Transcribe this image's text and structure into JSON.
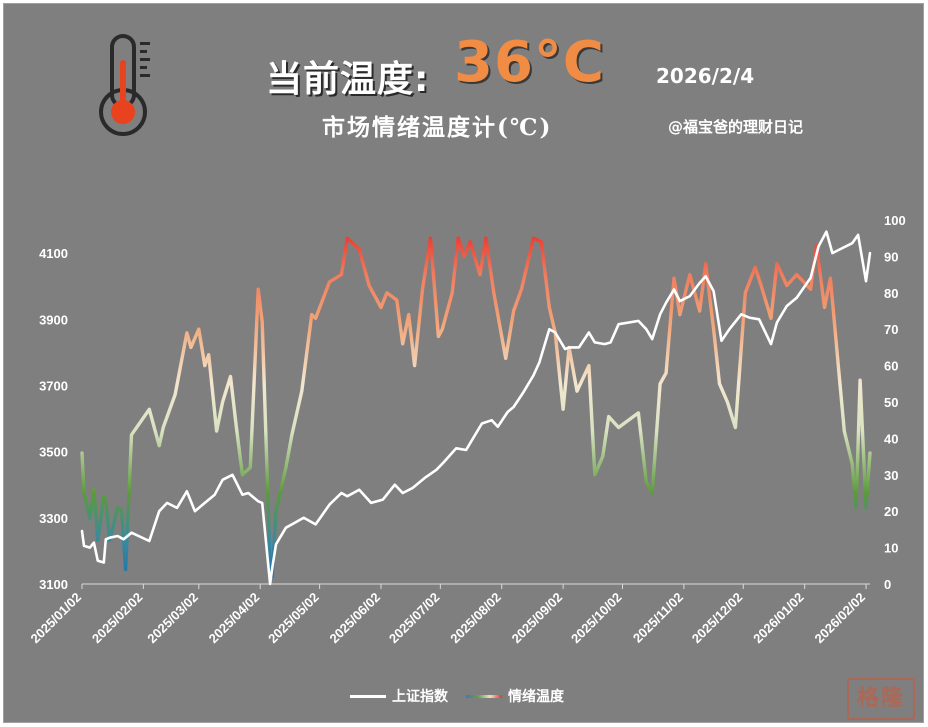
{
  "header": {
    "title_prefix": "当前温度:",
    "title_value": "36°C",
    "date": "2026/2/4",
    "subtitle": "市场情绪温度计(℃)",
    "credit": "@福宝爸的理财日记",
    "icon": "thermometer-icon",
    "seal_text": "格隆"
  },
  "colors": {
    "background": "#7f7f7f",
    "index_line": "#ffffff",
    "temp_cold": "#1f6fae",
    "temp_cool": "#5c9a3c",
    "temp_mild": "#f2e7d0",
    "temp_warm": "#f2a478",
    "temp_hot": "#e8221e",
    "title_accent": "#f08c43"
  },
  "chart_data": {
    "type": "line",
    "x_tick_labels": [
      "2025/01/02",
      "2025/02/02",
      "2025/03/02",
      "2025/04/02",
      "2025/05/02",
      "2025/06/02",
      "2025/07/02",
      "2025/08/02",
      "2025/09/02",
      "2025/10/02",
      "2025/11/02",
      "2025/12/02",
      "2026/01/02",
      "2026/02/02"
    ],
    "y_left": {
      "ticks": [
        "3100",
        "3300",
        "3500",
        "3700",
        "3900",
        "4100"
      ],
      "ylim": [
        3100,
        4200
      ]
    },
    "y_right": {
      "ticks": [
        "0",
        "10",
        "20",
        "30",
        "40",
        "50",
        "60",
        "70",
        "80",
        "90",
        "100"
      ],
      "ylim": [
        0,
        100
      ]
    },
    "xlim": [
      "2025-01-02",
      "2026-02-04"
    ],
    "grid": false,
    "legend": {
      "position": "bottom",
      "entries": [
        "上证指数",
        "情绪温度"
      ]
    },
    "series": [
      {
        "name": "上证指数",
        "axis": "left",
        "points": [
          [
            "2025-01-02",
            3260
          ],
          [
            "2025-01-03",
            3215
          ],
          [
            "2025-01-06",
            3210
          ],
          [
            "2025-01-08",
            3225
          ],
          [
            "2025-01-10",
            3170
          ],
          [
            "2025-01-13",
            3165
          ],
          [
            "2025-01-14",
            3235
          ],
          [
            "2025-01-16",
            3240
          ],
          [
            "2025-01-20",
            3245
          ],
          [
            "2025-01-23",
            3235
          ],
          [
            "2025-01-27",
            3255
          ],
          [
            "2025-02-05",
            3230
          ],
          [
            "2025-02-10",
            3320
          ],
          [
            "2025-02-14",
            3345
          ],
          [
            "2025-02-19",
            3330
          ],
          [
            "2025-02-24",
            3380
          ],
          [
            "2025-02-28",
            3320
          ],
          [
            "2025-03-05",
            3345
          ],
          [
            "2025-03-10",
            3370
          ],
          [
            "2025-03-14",
            3415
          ],
          [
            "2025-03-19",
            3430
          ],
          [
            "2025-03-24",
            3370
          ],
          [
            "2025-03-27",
            3375
          ],
          [
            "2025-04-01",
            3350
          ],
          [
            "2025-04-03",
            3345
          ],
          [
            "2025-04-07",
            3100
          ],
          [
            "2025-04-08",
            3145
          ],
          [
            "2025-04-10",
            3220
          ],
          [
            "2025-04-15",
            3270
          ],
          [
            "2025-04-18",
            3280
          ],
          [
            "2025-04-24",
            3300
          ],
          [
            "2025-04-30",
            3280
          ],
          [
            "2025-05-07",
            3340
          ],
          [
            "2025-05-13",
            3375
          ],
          [
            "2025-05-16",
            3365
          ],
          [
            "2025-05-22",
            3385
          ],
          [
            "2025-05-28",
            3345
          ],
          [
            "2025-06-03",
            3355
          ],
          [
            "2025-06-09",
            3400
          ],
          [
            "2025-06-13",
            3375
          ],
          [
            "2025-06-18",
            3390
          ],
          [
            "2025-06-24",
            3420
          ],
          [
            "2025-06-30",
            3445
          ],
          [
            "2025-07-04",
            3470
          ],
          [
            "2025-07-10",
            3510
          ],
          [
            "2025-07-15",
            3505
          ],
          [
            "2025-07-18",
            3535
          ],
          [
            "2025-07-23",
            3585
          ],
          [
            "2025-07-28",
            3595
          ],
          [
            "2025-07-31",
            3575
          ],
          [
            "2025-08-05",
            3620
          ],
          [
            "2025-08-08",
            3635
          ],
          [
            "2025-08-13",
            3680
          ],
          [
            "2025-08-18",
            3730
          ],
          [
            "2025-08-21",
            3770
          ],
          [
            "2025-08-26",
            3870
          ],
          [
            "2025-08-29",
            3860
          ],
          [
            "2025-09-03",
            3810
          ],
          [
            "2025-09-05",
            3815
          ],
          [
            "2025-09-10",
            3815
          ],
          [
            "2025-09-15",
            3860
          ],
          [
            "2025-09-18",
            3830
          ],
          [
            "2025-09-23",
            3825
          ],
          [
            "2025-09-26",
            3830
          ],
          [
            "2025-09-30",
            3885
          ],
          [
            "2025-10-10",
            3895
          ],
          [
            "2025-10-14",
            3870
          ],
          [
            "2025-10-17",
            3840
          ],
          [
            "2025-10-21",
            3915
          ],
          [
            "2025-10-24",
            3950
          ],
          [
            "2025-10-28",
            3990
          ],
          [
            "2025-10-31",
            3955
          ],
          [
            "2025-11-05",
            3970
          ],
          [
            "2025-11-10",
            4010
          ],
          [
            "2025-11-13",
            4030
          ],
          [
            "2025-11-17",
            3985
          ],
          [
            "2025-11-21",
            3835
          ],
          [
            "2025-11-25",
            3870
          ],
          [
            "2025-12-01",
            3915
          ],
          [
            "2025-12-05",
            3905
          ],
          [
            "2025-12-10",
            3900
          ],
          [
            "2025-12-16",
            3825
          ],
          [
            "2025-12-19",
            3890
          ],
          [
            "2025-12-24",
            3940
          ],
          [
            "2025-12-29",
            3965
          ],
          [
            "2026-01-05",
            4025
          ],
          [
            "2026-01-09",
            4120
          ],
          [
            "2026-01-13",
            4165
          ],
          [
            "2026-01-16",
            4100
          ],
          [
            "2026-01-21",
            4115
          ],
          [
            "2026-01-26",
            4130
          ],
          [
            "2026-01-29",
            4155
          ],
          [
            "2026-02-02",
            4015
          ],
          [
            "2026-02-04",
            4100
          ]
        ]
      },
      {
        "name": "情绪温度",
        "axis": "right",
        "points": [
          [
            "2025-01-02",
            36
          ],
          [
            "2025-01-03",
            25
          ],
          [
            "2025-01-06",
            18
          ],
          [
            "2025-01-08",
            26
          ],
          [
            "2025-01-10",
            12
          ],
          [
            "2025-01-13",
            24
          ],
          [
            "2025-01-14",
            23
          ],
          [
            "2025-01-16",
            12
          ],
          [
            "2025-01-20",
            21
          ],
          [
            "2025-01-22",
            20
          ],
          [
            "2025-01-24",
            4
          ],
          [
            "2025-01-27",
            41
          ],
          [
            "2025-02-05",
            48
          ],
          [
            "2025-02-10",
            38
          ],
          [
            "2025-02-12",
            43
          ],
          [
            "2025-02-18",
            52
          ],
          [
            "2025-02-24",
            69
          ],
          [
            "2025-02-26",
            65
          ],
          [
            "2025-03-02",
            70
          ],
          [
            "2025-03-05",
            60
          ],
          [
            "2025-03-07",
            63
          ],
          [
            "2025-03-11",
            42
          ],
          [
            "2025-03-14",
            50
          ],
          [
            "2025-03-18",
            57
          ],
          [
            "2025-03-21",
            43
          ],
          [
            "2025-03-24",
            30
          ],
          [
            "2025-03-28",
            32
          ],
          [
            "2025-04-01",
            81
          ],
          [
            "2025-04-03",
            72
          ],
          [
            "2025-04-07",
            5
          ],
          [
            "2025-04-08",
            2
          ],
          [
            "2025-04-10",
            20
          ],
          [
            "2025-04-15",
            32
          ],
          [
            "2025-04-18",
            41
          ],
          [
            "2025-04-23",
            53
          ],
          [
            "2025-04-28",
            74
          ],
          [
            "2025-04-30",
            73
          ],
          [
            "2025-05-07",
            83
          ],
          [
            "2025-05-13",
            85
          ],
          [
            "2025-05-16",
            95
          ],
          [
            "2025-05-22",
            92
          ],
          [
            "2025-05-27",
            82
          ],
          [
            "2025-06-02",
            76
          ],
          [
            "2025-06-05",
            80
          ],
          [
            "2025-06-10",
            78
          ],
          [
            "2025-06-13",
            66
          ],
          [
            "2025-06-16",
            74
          ],
          [
            "2025-06-19",
            60
          ],
          [
            "2025-06-23",
            81
          ],
          [
            "2025-06-27",
            95
          ],
          [
            "2025-07-01",
            68
          ],
          [
            "2025-07-03",
            70
          ],
          [
            "2025-07-08",
            80
          ],
          [
            "2025-07-11",
            95
          ],
          [
            "2025-07-14",
            90
          ],
          [
            "2025-07-17",
            94
          ],
          [
            "2025-07-22",
            85
          ],
          [
            "2025-07-25",
            95
          ],
          [
            "2025-07-29",
            80
          ],
          [
            "2025-08-04",
            62
          ],
          [
            "2025-08-08",
            75
          ],
          [
            "2025-08-12",
            81
          ],
          [
            "2025-08-18",
            95
          ],
          [
            "2025-08-22",
            94
          ],
          [
            "2025-08-26",
            76
          ],
          [
            "2025-08-29",
            69
          ],
          [
            "2025-09-02",
            48
          ],
          [
            "2025-09-05",
            65
          ],
          [
            "2025-09-09",
            53
          ],
          [
            "2025-09-15",
            60
          ],
          [
            "2025-09-18",
            30
          ],
          [
            "2025-09-22",
            35
          ],
          [
            "2025-09-25",
            46
          ],
          [
            "2025-09-30",
            43
          ],
          [
            "2025-10-10",
            47
          ],
          [
            "2025-10-14",
            28
          ],
          [
            "2025-10-17",
            25
          ],
          [
            "2025-10-21",
            55
          ],
          [
            "2025-10-24",
            58
          ],
          [
            "2025-10-28",
            84
          ],
          [
            "2025-10-31",
            74
          ],
          [
            "2025-11-05",
            85
          ],
          [
            "2025-11-10",
            75
          ],
          [
            "2025-11-13",
            88
          ],
          [
            "2025-11-17",
            70
          ],
          [
            "2025-11-20",
            55
          ],
          [
            "2025-11-24",
            50
          ],
          [
            "2025-11-28",
            43
          ],
          [
            "2025-12-03",
            80
          ],
          [
            "2025-12-08",
            87
          ],
          [
            "2025-12-11",
            82
          ],
          [
            "2025-12-16",
            73
          ],
          [
            "2025-12-19",
            88
          ],
          [
            "2025-12-24",
            82
          ],
          [
            "2025-12-29",
            85
          ],
          [
            "2026-01-05",
            81
          ],
          [
            "2026-01-08",
            93
          ],
          [
            "2026-01-12",
            76
          ],
          [
            "2026-01-15",
            84
          ],
          [
            "2026-01-19",
            60
          ],
          [
            "2026-01-22",
            42
          ],
          [
            "2026-01-26",
            33
          ],
          [
            "2026-01-28",
            21
          ],
          [
            "2026-01-30",
            56
          ],
          [
            "2026-02-02",
            21
          ],
          [
            "2026-02-04",
            36
          ]
        ]
      }
    ]
  }
}
